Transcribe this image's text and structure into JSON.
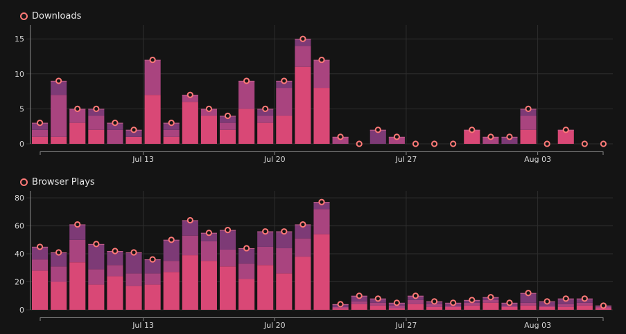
{
  "colors": {
    "background": "#141414",
    "grid": "#2e2e2e",
    "axis": "#8a8a8a",
    "seg_bottom": "#d94876",
    "seg_middle": "#a9447f",
    "seg_top": "#7d3a76",
    "marker": "#ff7a78"
  },
  "chart_data": [
    {
      "type": "bar",
      "stacked": true,
      "legend": "Downloads",
      "categories": [
        "Jul 07",
        "Jul 08",
        "Jul 09",
        "Jul 10",
        "Jul 11",
        "Jul 12",
        "Jul 13",
        "Jul 14",
        "Jul 15",
        "Jul 16",
        "Jul 17",
        "Jul 18",
        "Jul 19",
        "Jul 20",
        "Jul 21",
        "Jul 22",
        "Jul 23",
        "Jul 24",
        "Jul 25",
        "Jul 26",
        "Jul 27",
        "Jul 28",
        "Jul 29",
        "Jul 30",
        "Jul 31",
        "Aug 01",
        "Aug 02",
        "Aug 03",
        "Aug 04",
        "Aug 05",
        "Aug 06"
      ],
      "x_tick_labels": [
        "Jul 13",
        "Jul 20",
        "Jul 27",
        "Aug 03"
      ],
      "series": [
        {
          "values": [
            1,
            1,
            3,
            2,
            0,
            1,
            7,
            1,
            6,
            4,
            2,
            5,
            3,
            4,
            11,
            8,
            0,
            0,
            0,
            0,
            0,
            0,
            0,
            2,
            0,
            0,
            2,
            0,
            2,
            0,
            0
          ]
        },
        {
          "values": [
            1,
            6,
            2,
            2,
            2,
            0,
            5,
            1,
            1,
            1,
            1,
            4,
            1,
            4,
            3,
            4,
            1,
            0,
            0,
            1,
            0,
            0,
            0,
            0,
            1,
            0,
            2,
            0,
            0,
            0,
            0
          ]
        },
        {
          "values": [
            1,
            2,
            0,
            1,
            1,
            1,
            0,
            1,
            0,
            0,
            1,
            0,
            1,
            1,
            1,
            0,
            0,
            0,
            2,
            0,
            0,
            0,
            0,
            0,
            0,
            1,
            1,
            0,
            0,
            0,
            0
          ]
        }
      ],
      "totals": [
        3,
        9,
        5,
        5,
        3,
        2,
        12,
        3,
        7,
        5,
        4,
        9,
        5,
        9,
        15,
        12,
        1,
        0,
        2,
        1,
        0,
        0,
        0,
        2,
        1,
        1,
        5,
        0,
        2,
        0,
        0
      ],
      "y_ticks": [
        0,
        5,
        10,
        15
      ],
      "ylim": [
        0,
        16.8
      ]
    },
    {
      "type": "bar",
      "stacked": true,
      "legend": "Browser Plays",
      "categories": [
        "Jul 07",
        "Jul 08",
        "Jul 09",
        "Jul 10",
        "Jul 11",
        "Jul 12",
        "Jul 13",
        "Jul 14",
        "Jul 15",
        "Jul 16",
        "Jul 17",
        "Jul 18",
        "Jul 19",
        "Jul 20",
        "Jul 21",
        "Jul 22",
        "Jul 23",
        "Jul 24",
        "Jul 25",
        "Jul 26",
        "Jul 27",
        "Jul 28",
        "Jul 29",
        "Jul 30",
        "Jul 31",
        "Aug 01",
        "Aug 02",
        "Aug 03",
        "Aug 04",
        "Aug 05",
        "Aug 06"
      ],
      "x_tick_labels": [
        "Jul 13",
        "Jul 20",
        "Jul 27",
        "Aug 03"
      ],
      "series": [
        {
          "values": [
            28,
            20,
            34,
            18,
            24,
            17,
            18,
            27,
            39,
            35,
            31,
            22,
            32,
            26,
            38,
            54,
            1,
            4,
            3,
            1,
            4,
            2,
            2,
            3,
            5,
            2,
            3,
            2,
            2,
            3,
            1
          ]
        },
        {
          "values": [
            8,
            11,
            16,
            11,
            8,
            9,
            8,
            8,
            14,
            14,
            12,
            11,
            13,
            18,
            13,
            18,
            1,
            2,
            2,
            2,
            3,
            2,
            1,
            2,
            2,
            1,
            2,
            1,
            2,
            2,
            1
          ]
        },
        {
          "values": [
            9,
            10,
            11,
            18,
            10,
            15,
            10,
            15,
            11,
            6,
            14,
            11,
            11,
            12,
            10,
            5,
            2,
            4,
            3,
            2,
            3,
            2,
            2,
            2,
            2,
            2,
            7,
            3,
            4,
            3,
            1
          ]
        }
      ],
      "totals": [
        45,
        41,
        61,
        47,
        42,
        41,
        36,
        50,
        64,
        55,
        57,
        44,
        56,
        56,
        61,
        77,
        4,
        10,
        8,
        5,
        10,
        6,
        5,
        7,
        9,
        5,
        12,
        6,
        8,
        8,
        3
      ],
      "y_ticks": [
        0,
        20,
        40,
        60,
        80
      ],
      "ylim": [
        0,
        84
      ]
    }
  ]
}
